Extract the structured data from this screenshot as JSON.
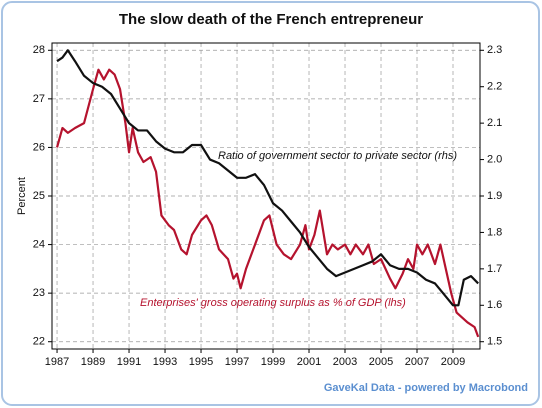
{
  "chart_data": {
    "type": "line",
    "title": "The slow death of the French entrepreneur",
    "y_label": "Percent",
    "source": "GaveKal Data - powered by Macrobond",
    "annotations": [
      "Ratio of government sector to private sector  (rhs)",
      "Enterprises' gross operating surplus as % of GDP (lhs)"
    ],
    "xlim": [
      1986.72,
      2010.5
    ],
    "xticks": [
      1987,
      1989,
      1991,
      1993,
      1995,
      1997,
      1999,
      2001,
      2003,
      2005,
      2007,
      2009
    ],
    "ylim": [
      21.85,
      28.15
    ],
    "yticks": [
      22,
      23,
      24,
      25,
      26,
      27,
      28
    ],
    "y2lim": [
      1.48,
      2.32
    ],
    "y2ticks": [
      1.5,
      1.6,
      1.7,
      1.8,
      1.9,
      {
        "value": 2,
        "label": "2.0"
      },
      2.1,
      2.2,
      2.3
    ],
    "grid": true,
    "series": [
      {
        "name": "Enterprises' gross operating surplus as % of GDP (lhs)",
        "color": "#b5132e",
        "axis": "y",
        "x": [
          1987.0,
          1987.3,
          1987.6,
          1988.0,
          1988.5,
          1989.0,
          1989.3,
          1989.6,
          1989.9,
          1990.2,
          1990.5,
          1990.8,
          1991.0,
          1991.2,
          1991.5,
          1991.8,
          1992.2,
          1992.5,
          1992.8,
          1993.2,
          1993.5,
          1993.9,
          1994.2,
          1994.5,
          1995.0,
          1995.3,
          1995.6,
          1996.0,
          1996.5,
          1996.8,
          1997.0,
          1997.2,
          1997.5,
          1998.0,
          1998.5,
          1998.8,
          1999.2,
          1999.6,
          2000.0,
          2000.5,
          2000.8,
          2001.0,
          2001.3,
          2001.6,
          2002.0,
          2002.3,
          2002.6,
          2003.0,
          2003.3,
          2003.6,
          2004.0,
          2004.3,
          2004.6,
          2005.0,
          2005.5,
          2005.8,
          2006.2,
          2006.5,
          2006.8,
          2007.0,
          2007.3,
          2007.6,
          2008.0,
          2008.3,
          2008.6,
          2008.9,
          2009.2,
          2009.5,
          2009.8,
          2010.2,
          2010.4
        ],
        "values": [
          26.0,
          26.4,
          26.3,
          26.4,
          26.5,
          27.2,
          27.6,
          27.4,
          27.6,
          27.5,
          27.2,
          26.5,
          25.9,
          26.4,
          25.9,
          25.7,
          25.8,
          25.5,
          24.6,
          24.4,
          24.3,
          23.9,
          23.8,
          24.2,
          24.5,
          24.6,
          24.4,
          23.9,
          23.7,
          23.3,
          23.4,
          23.1,
          23.5,
          24.0,
          24.5,
          24.6,
          24.0,
          23.8,
          23.7,
          24.0,
          24.4,
          23.9,
          24.2,
          24.7,
          23.8,
          24.0,
          23.9,
          24.0,
          23.8,
          24.0,
          23.8,
          24.0,
          23.6,
          23.7,
          23.3,
          23.1,
          23.4,
          23.7,
          23.5,
          24.0,
          23.8,
          24.0,
          23.6,
          24.0,
          23.5,
          23.0,
          22.6,
          22.5,
          22.4,
          22.3,
          22.1
        ]
      },
      {
        "name": "Ratio of government sector to private sector  (rhs)",
        "color": "#111111",
        "axis": "y2",
        "x": [
          1987.0,
          1987.3,
          1987.6,
          1988.0,
          1988.5,
          1989.0,
          1989.5,
          1990.0,
          1990.5,
          1991.0,
          1991.5,
          1992.0,
          1992.5,
          1993.0,
          1993.5,
          1994.0,
          1994.5,
          1995.0,
          1995.5,
          1996.0,
          1996.5,
          1997.0,
          1997.5,
          1998.0,
          1998.5,
          1999.0,
          1999.5,
          2000.0,
          2000.5,
          2001.0,
          2001.5,
          2002.0,
          2002.5,
          2003.0,
          2003.5,
          2004.0,
          2004.5,
          2005.0,
          2005.5,
          2006.0,
          2006.5,
          2007.0,
          2007.5,
          2008.0,
          2008.5,
          2009.0,
          2009.3,
          2009.6,
          2010.0,
          2010.4
        ],
        "values": [
          2.27,
          2.28,
          2.3,
          2.27,
          2.23,
          2.21,
          2.2,
          2.18,
          2.14,
          2.1,
          2.08,
          2.08,
          2.05,
          2.03,
          2.02,
          2.02,
          2.04,
          2.04,
          2.0,
          1.99,
          1.97,
          1.95,
          1.95,
          1.96,
          1.93,
          1.88,
          1.86,
          1.83,
          1.8,
          1.76,
          1.73,
          1.7,
          1.68,
          1.69,
          1.7,
          1.71,
          1.72,
          1.74,
          1.71,
          1.7,
          1.7,
          1.69,
          1.67,
          1.66,
          1.63,
          1.6,
          1.6,
          1.67,
          1.68,
          1.66
        ]
      }
    ]
  }
}
